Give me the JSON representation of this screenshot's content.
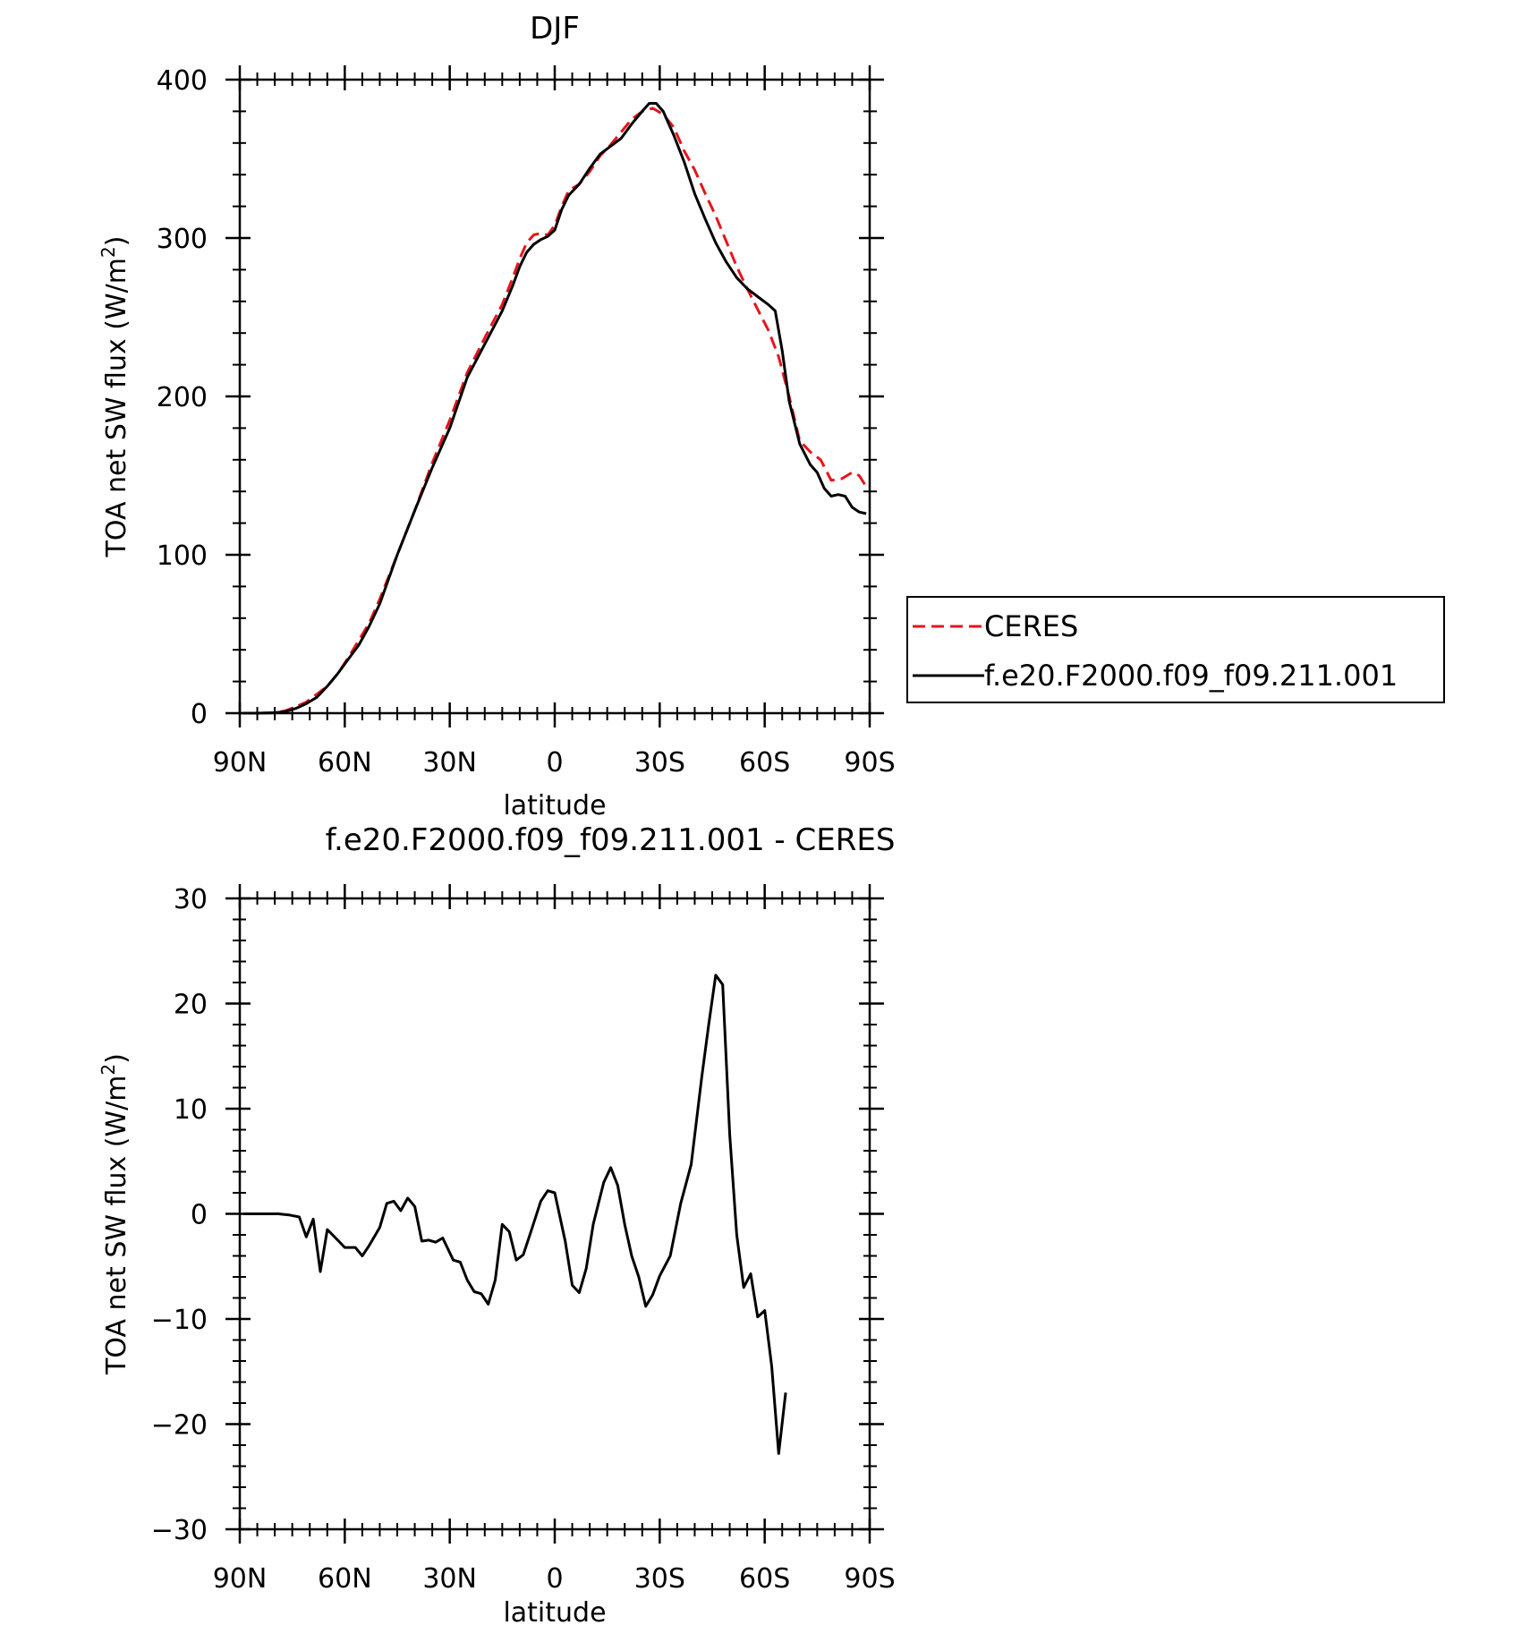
{
  "chart_data": [
    {
      "type": "line",
      "title": "DJF",
      "xlabel": "latitude",
      "ylabel_main": "TOA net SW flux (W/m",
      "ylabel_sup": "2",
      "ylabel_close": ")",
      "xlim": [
        90,
        -90
      ],
      "ylim": [
        0,
        400
      ],
      "x_ticks": [
        90,
        60,
        30,
        0,
        -30,
        -60,
        -90
      ],
      "x_tick_labels": [
        "90N",
        "60N",
        "30N",
        "0",
        "30S",
        "60S",
        "90S"
      ],
      "y_ticks": [
        0,
        100,
        200,
        300,
        400
      ],
      "y_tick_labels": [
        "0",
        "100",
        "200",
        "300",
        "400"
      ],
      "legend": {
        "position": "right",
        "entries": [
          "CERES",
          "f.e20.F2000.f09_f09.211.001"
        ]
      },
      "series": [
        {
          "name": "CERES",
          "color": "#e8141c",
          "dash": "dashed",
          "points": [
            [
              89,
              0
            ],
            [
              85,
              0
            ],
            [
              80,
              0.3
            ],
            [
              77,
              1.5
            ],
            [
              74,
              4
            ],
            [
              71,
              7
            ],
            [
              68,
              12
            ],
            [
              65,
              17
            ],
            [
              62,
              25
            ],
            [
              59,
              35
            ],
            [
              56,
              46
            ],
            [
              53,
              57
            ],
            [
              50,
              72
            ],
            [
              45,
              100
            ],
            [
              40,
              128
            ],
            [
              35,
              158
            ],
            [
              30,
              185
            ],
            [
              25,
              215
            ],
            [
              20,
              237
            ],
            [
              15,
              258
            ],
            [
              12,
              275
            ],
            [
              10,
              287
            ],
            [
              8,
              297
            ],
            [
              6,
              302
            ],
            [
              4,
              303
            ],
            [
              2,
              302
            ],
            [
              0,
              308
            ],
            [
              -2,
              320
            ],
            [
              -4,
              330
            ],
            [
              -7,
              334
            ],
            [
              -10,
              342
            ],
            [
              -13,
              352
            ],
            [
              -16,
              359
            ],
            [
              -19,
              367
            ],
            [
              -22,
              375
            ],
            [
              -25,
              380
            ],
            [
              -28,
              382
            ],
            [
              -31,
              378
            ],
            [
              -34,
              370
            ],
            [
              -37,
              355
            ],
            [
              -40,
              343
            ],
            [
              -43,
              328
            ],
            [
              -46,
              314
            ],
            [
              -49,
              298
            ],
            [
              -52,
              282
            ],
            [
              -55,
              268
            ],
            [
              -58,
              255
            ],
            [
              -61,
              242
            ],
            [
              -64,
              225
            ],
            [
              -67,
              200
            ],
            [
              -70,
              172
            ],
            [
              -73,
              165
            ],
            [
              -76,
              160
            ],
            [
              -79,
              147
            ],
            [
              -82,
              148
            ],
            [
              -85,
              152
            ],
            [
              -87,
              150
            ],
            [
              -89,
              143
            ]
          ]
        },
        {
          "name": "f.e20.F2000.f09_f09.211.001",
          "color": "#000000",
          "dash": "solid",
          "points": [
            [
              89,
              0
            ],
            [
              85,
              0
            ],
            [
              80,
              0.3
            ],
            [
              77,
              1
            ],
            [
              74,
              3
            ],
            [
              71,
              6
            ],
            [
              68,
              10
            ],
            [
              65,
              17
            ],
            [
              62,
              25
            ],
            [
              59,
              34
            ],
            [
              56,
              43
            ],
            [
              53,
              55
            ],
            [
              50,
              69
            ],
            [
              45,
              100
            ],
            [
              40,
              128
            ],
            [
              35,
              155
            ],
            [
              30,
              180
            ],
            [
              25,
              212
            ],
            [
              20,
              233
            ],
            [
              15,
              254
            ],
            [
              12,
              270
            ],
            [
              10,
              282
            ],
            [
              8,
              291
            ],
            [
              6,
              296
            ],
            [
              4,
              299
            ],
            [
              2,
              301
            ],
            [
              0,
              305
            ],
            [
              -2,
              318
            ],
            [
              -4,
              327
            ],
            [
              -7,
              334
            ],
            [
              -10,
              344
            ],
            [
              -13,
              353
            ],
            [
              -16,
              358
            ],
            [
              -19,
              363
            ],
            [
              -22,
              372
            ],
            [
              -25,
              380
            ],
            [
              -27,
              385
            ],
            [
              -29,
              385
            ],
            [
              -31,
              380
            ],
            [
              -34,
              365
            ],
            [
              -37,
              348
            ],
            [
              -40,
              328
            ],
            [
              -43,
              312
            ],
            [
              -46,
              297
            ],
            [
              -49,
              285
            ],
            [
              -52,
              275
            ],
            [
              -55,
              268
            ],
            [
              -58,
              263
            ],
            [
              -61,
              258
            ],
            [
              -63,
              254
            ],
            [
              -65,
              229
            ],
            [
              -67,
              197
            ],
            [
              -70,
              170
            ],
            [
              -73,
              157
            ],
            [
              -75,
              152
            ],
            [
              -77,
              142
            ],
            [
              -79,
              137
            ],
            [
              -81,
              138
            ],
            [
              -83,
              137
            ],
            [
              -85,
              130
            ],
            [
              -87,
              127
            ],
            [
              -89,
              126
            ]
          ]
        }
      ]
    },
    {
      "type": "line",
      "title": "f.e20.F2000.f09_f09.211.001 - CERES",
      "xlabel": "latitude",
      "ylabel_main": "TOA net SW flux (W/m",
      "ylabel_sup": "2",
      "ylabel_close": ")",
      "xlim": [
        90,
        -90
      ],
      "ylim": [
        -30,
        30
      ],
      "x_ticks": [
        90,
        60,
        30,
        0,
        -30,
        -60,
        -90
      ],
      "x_tick_labels": [
        "90N",
        "60N",
        "30N",
        "0",
        "30S",
        "60S",
        "90S"
      ],
      "y_ticks": [
        -30,
        -20,
        -10,
        0,
        10,
        20,
        30
      ],
      "y_tick_labels": [
        "−30",
        "−20",
        "−10",
        "0",
        "10",
        "20",
        "30"
      ],
      "series": [
        {
          "color": "#000000",
          "dash": "solid",
          "points": [
            [
              89,
              0
            ],
            [
              84,
              0
            ],
            [
              79,
              0
            ],
            [
              76,
              -0.1
            ],
            [
              73,
              -0.3
            ],
            [
              71,
              -2.2
            ],
            [
              69,
              -0.5
            ],
            [
              67,
              -5.5
            ],
            [
              65,
              -1.5
            ],
            [
              62,
              -2.5
            ],
            [
              60,
              -3.2
            ],
            [
              57,
              -3.2
            ],
            [
              55,
              -4
            ],
            [
              53,
              -3
            ],
            [
              50,
              -1.3
            ],
            [
              48,
              1
            ],
            [
              46,
              1.2
            ],
            [
              44,
              0.3
            ],
            [
              42,
              1.5
            ],
            [
              40,
              0.7
            ],
            [
              38,
              -2.6
            ],
            [
              36,
              -2.5
            ],
            [
              34,
              -2.7
            ],
            [
              32,
              -2.3
            ],
            [
              29,
              -4.4
            ],
            [
              27,
              -4.6
            ],
            [
              25,
              -6.3
            ],
            [
              23,
              -7.4
            ],
            [
              21,
              -7.6
            ],
            [
              19,
              -8.6
            ],
            [
              17,
              -6.3
            ],
            [
              15,
              -1
            ],
            [
              13,
              -1.7
            ],
            [
              11,
              -4.4
            ],
            [
              9,
              -3.9
            ],
            [
              7,
              -1.9
            ],
            [
              4,
              1.2
            ],
            [
              2,
              2.2
            ],
            [
              0,
              2
            ],
            [
              -3,
              -2.6
            ],
            [
              -5,
              -6.8
            ],
            [
              -7,
              -7.5
            ],
            [
              -9,
              -5.2
            ],
            [
              -11,
              -1
            ],
            [
              -14,
              3
            ],
            [
              -16,
              4.4
            ],
            [
              -18,
              2.7
            ],
            [
              -20,
              -1
            ],
            [
              -22,
              -4
            ],
            [
              -24,
              -6
            ],
            [
              -26,
              -8.8
            ],
            [
              -28,
              -7.7
            ],
            [
              -30,
              -5.9
            ],
            [
              -33,
              -4
            ],
            [
              -36,
              1
            ],
            [
              -39,
              4.7
            ],
            [
              -42,
              13
            ],
            [
              -44,
              18
            ],
            [
              -46,
              22.7
            ],
            [
              -48,
              21.8
            ],
            [
              -50,
              7.5
            ],
            [
              -52,
              -2
            ],
            [
              -54,
              -7
            ],
            [
              -56,
              -5.7
            ],
            [
              -58,
              -9.8
            ],
            [
              -60,
              -9.2
            ],
            [
              -62,
              -14.5
            ],
            [
              -64,
              -22.8
            ],
            [
              -66,
              -17
            ]
          ]
        }
      ]
    }
  ]
}
